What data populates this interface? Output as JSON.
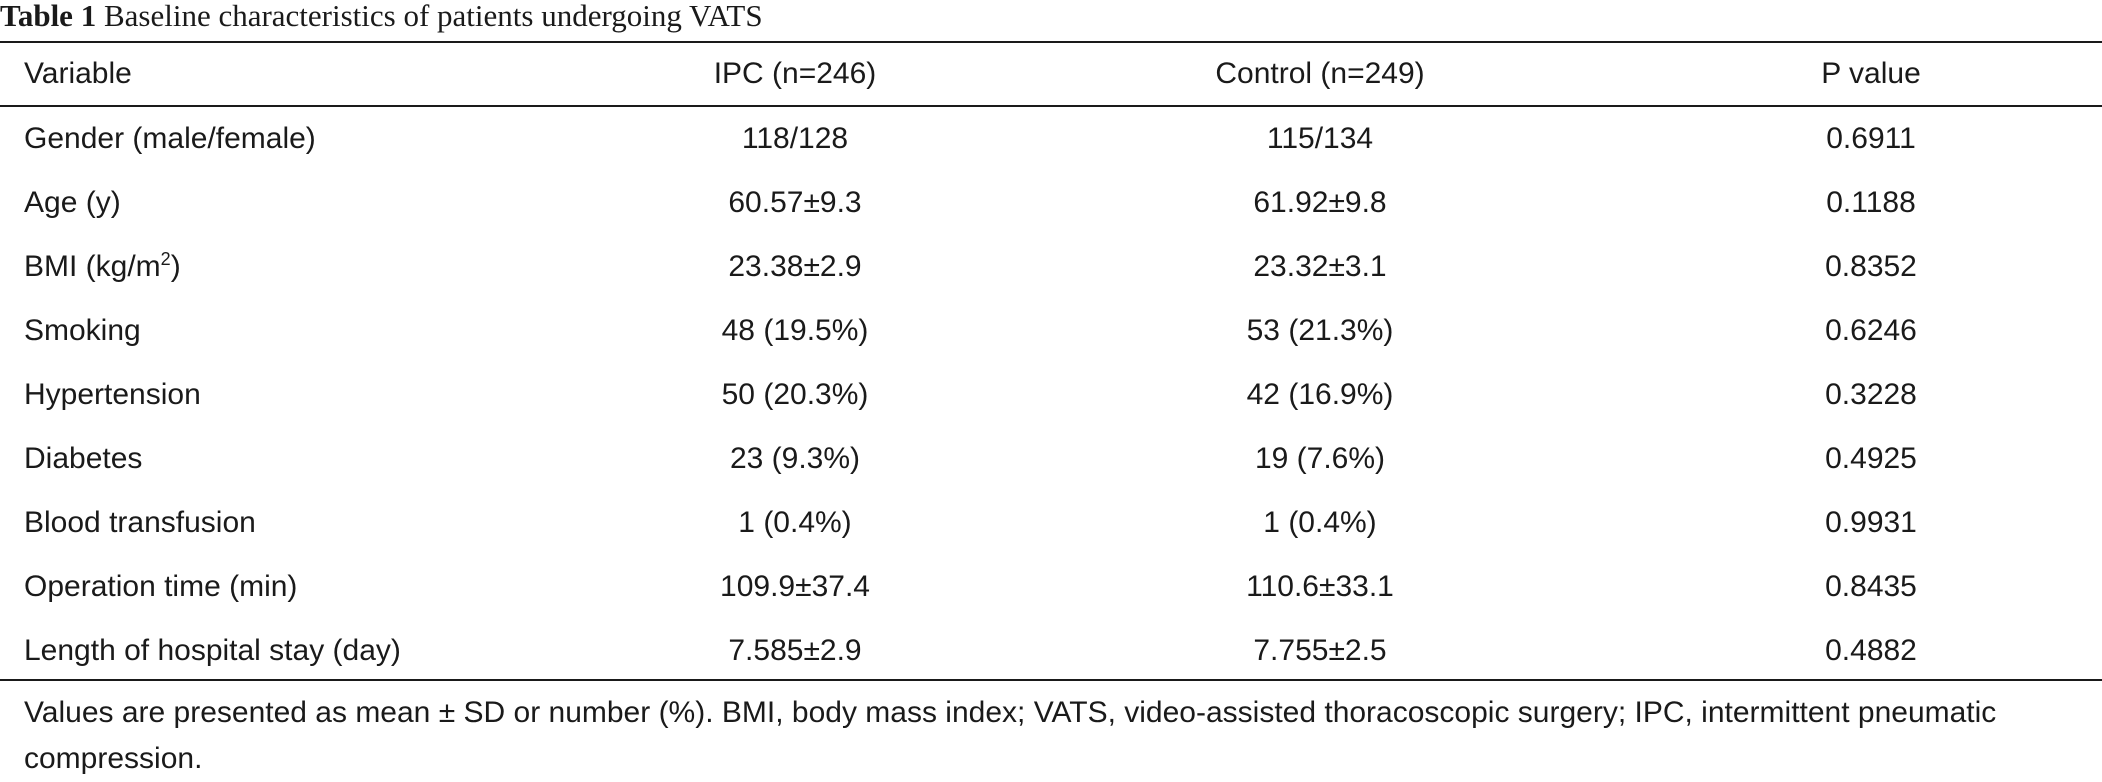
{
  "caption": {
    "label": "Table 1",
    "title": "Baseline characteristics of patients undergoing VATS"
  },
  "table": {
    "headers": [
      "Variable",
      "IPC (n=246)",
      "Control (n=249)",
      "P value"
    ],
    "rows": [
      {
        "variable": "Gender (male/female)",
        "ipc": "118/128",
        "control": "115/134",
        "p": "0.6911"
      },
      {
        "variable": "Age (y)",
        "ipc": "60.57±9.3",
        "control": "61.92±9.8",
        "p": "0.1188"
      },
      {
        "variable": "BMI (kg/m",
        "variable_sup": "2",
        "variable_suffix": ")",
        "ipc": "23.38±2.9",
        "control": "23.32±3.1",
        "p": "0.8352"
      },
      {
        "variable": "Smoking",
        "ipc": "48 (19.5%)",
        "control": "53 (21.3%)",
        "p": "0.6246"
      },
      {
        "variable": "Hypertension",
        "ipc": "50 (20.3%)",
        "control": "42 (16.9%)",
        "p": "0.3228"
      },
      {
        "variable": "Diabetes",
        "ipc": "23 (9.3%)",
        "control": "19 (7.6%)",
        "p": "0.4925"
      },
      {
        "variable": "Blood transfusion",
        "ipc": "1 (0.4%)",
        "control": "1 (0.4%)",
        "p": "0.9931"
      },
      {
        "variable": "Operation time (min)",
        "ipc": "109.9±37.4",
        "control": "110.6±33.1",
        "p": "0.8435"
      },
      {
        "variable": "Length of hospital stay (day)",
        "ipc": "7.585±2.9",
        "control": "7.755±2.5",
        "p": "0.4882"
      }
    ]
  },
  "footnote": "Values are presented as mean ± SD or number (%). BMI, body mass index; VATS, video-assisted thoracoscopic surgery; IPC, intermittent pneumatic compression."
}
